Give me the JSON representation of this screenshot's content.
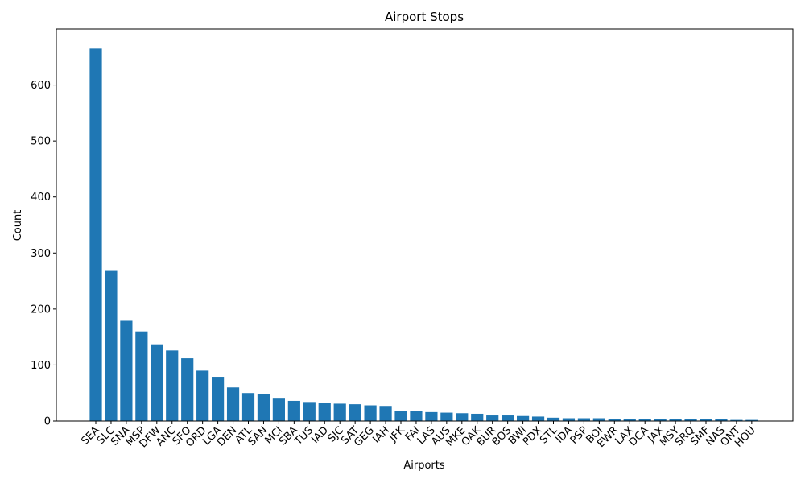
{
  "chart_data": {
    "type": "bar",
    "title": "Airport Stops",
    "xlabel": "Airports",
    "ylabel": "Count",
    "ylim": [
      0,
      700
    ],
    "yticks": [
      0,
      100,
      200,
      300,
      400,
      500,
      600
    ],
    "color": "#1f77b4",
    "grid": false,
    "categories": [
      "SEA",
      "SLC",
      "SNA",
      "MSP",
      "DFW",
      "ANC",
      "SFO",
      "ORD",
      "LGA",
      "DEN",
      "ATL",
      "SAN",
      "MCI",
      "SBA",
      "TUS",
      "IAD",
      "SJC",
      "SAT",
      "GEG",
      "IAH",
      "JFK",
      "FAI",
      "LAS",
      "AUS",
      "MKE",
      "OAK",
      "BUR",
      "BOS",
      "BWI",
      "PDX",
      "STL",
      "IDA",
      "PSP",
      "BOI",
      "EWR",
      "LAX",
      "DCA",
      "JAX",
      "MSY",
      "SRQ",
      "SMF",
      "NAS",
      "ONT",
      "HOU"
    ],
    "values": [
      665,
      268,
      179,
      160,
      137,
      126,
      112,
      90,
      79,
      60,
      50,
      48,
      40,
      36,
      34,
      33,
      31,
      30,
      28,
      27,
      18,
      18,
      16,
      15,
      14,
      13,
      10,
      10,
      9,
      8,
      6,
      5,
      5,
      5,
      4,
      4,
      3,
      3,
      3,
      3,
      3,
      3,
      2,
      2
    ]
  }
}
